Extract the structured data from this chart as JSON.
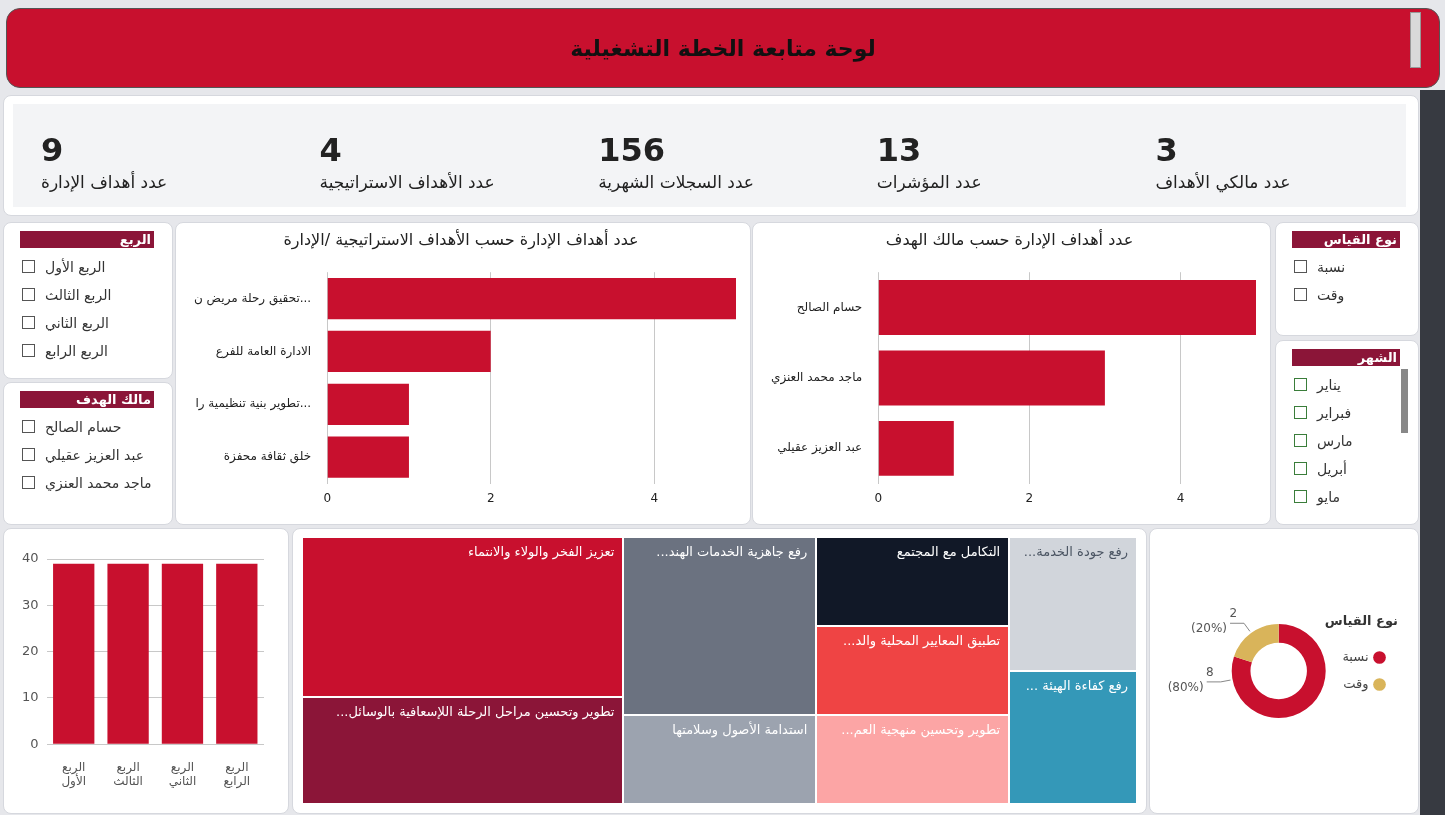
{
  "chart_data": [
    {
      "type": "other",
      "title": "لوحة متابعة الخطة التشغيلية",
      "categories": [
        "عدد أهداف الإدارة",
        "عدد الأهداف الاستراتيجية",
        "عدد السجلات الشهرية",
        "عدد المؤشرات",
        "عدد مالكي الأهداف"
      ],
      "annotations": [
        "9",
        "4",
        "156",
        "13",
        "3"
      ]
    },
    {
      "type": "other",
      "title": "الربع",
      "categories": [
        "الربع الأول",
        "الربع الثالث",
        "الربع الثاني",
        "الربع الرابع"
      ]
    },
    {
      "type": "bar",
      "orientation": "horizontal",
      "title": "عدد أهداف الإدارة حسب الأهداف الاستراتيجية /الإدارة",
      "categories": [
        "تحقيق رحلة مريض ن...",
        "الادارة العامة للفرع",
        "تطوير بنية تنظيمية را...",
        "خلق ثقافة محفزة"
      ],
      "values": [
        5,
        2,
        1,
        1
      ],
      "color": "#c8102e",
      "xlim": [
        0,
        5
      ],
      "xticks": [
        0,
        2,
        4
      ],
      "grid": "x"
    },
    {
      "type": "bar",
      "orientation": "horizontal",
      "title": "عدد أهداف الإدارة حسب مالك الهدف",
      "categories": [
        "حسام الصالح",
        "ماجد محمد العنزي",
        "عبد العزيز عقيلي"
      ],
      "values": [
        5,
        3,
        1
      ],
      "color": "#c8102e",
      "xlim": [
        0,
        5
      ],
      "xticks": [
        0,
        2,
        4
      ],
      "grid": "x"
    },
    {
      "type": "other",
      "title": "نوع القياس",
      "categories": [
        "نسبة",
        "وقت"
      ]
    },
    {
      "type": "other",
      "title": "مالك الهدف",
      "categories": [
        "حسام الصالح",
        "عبد العزيز عقيلي",
        "ماجد محمد العنزي"
      ]
    },
    {
      "type": "other",
      "title": "الشهر",
      "categories": [
        "يناير",
        "فبراير",
        "مارس",
        "أبريل",
        "مايو"
      ]
    },
    {
      "type": "bar",
      "categories": [
        "الربع الأول",
        "الربع الثالث",
        "الربع الثاني",
        "الربع الرابع"
      ],
      "values": [
        39,
        39,
        39,
        39
      ],
      "color": "#c8102e",
      "ylim": [
        0,
        40
      ],
      "yticks": [
        0,
        10,
        20,
        30,
        40
      ],
      "grid": "y"
    },
    {
      "type": "other",
      "categories": [
        "تعزيز الفخر والولاء والانتماء",
        "تطوير وتحسين مراحل الرحلة اللإسعافية بالوسائل...",
        "رفع جاهزية الخدمات الهند...",
        "استدامة الأصول وسلامتها",
        "التكامل مع المجتمع",
        "تطبيق المعايير المحلية والد...",
        "تطوير وتحسين منهجية العم...",
        "رفع جودة الخدمة...",
        "رفع كفاءة الهيئة ..."
      ],
      "colors": [
        "#c8102e",
        "#8b1538",
        "#6b7280",
        "#9ca3af",
        "#111827",
        "#ef4444",
        "#fca5a5",
        "#d1d5db",
        "#3498b8"
      ]
    },
    {
      "type": "donut",
      "categories": [
        "نسبة",
        "وقت"
      ],
      "values": [
        8,
        2
      ],
      "colors": [
        "#c8102e",
        "#d9b45a"
      ],
      "value_labels": [
        "8 (80%)",
        "2 (20%)"
      ],
      "legend": "right",
      "legend_title": "نوع القياس"
    }
  ]
}
